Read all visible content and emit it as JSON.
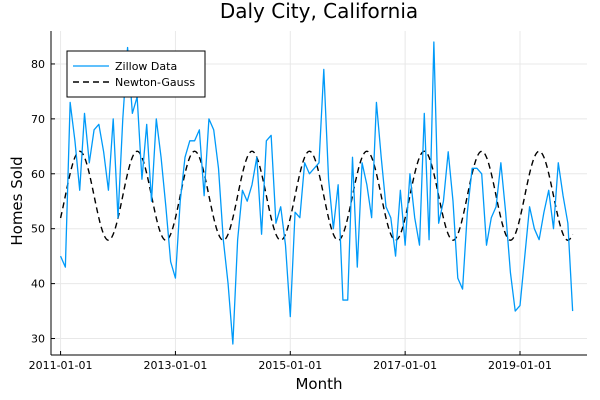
{
  "chart_data": {
    "type": "line",
    "title": "Daly City, California",
    "xlabel": "Month",
    "ylabel": "Homes Sold",
    "x_ticks": [
      "2011-01-01",
      "2013-01-01",
      "2015-01-01",
      "2017-01-01",
      "2019-01-01"
    ],
    "y_ticks": [
      30,
      40,
      50,
      60,
      70,
      80
    ],
    "xlim": [
      "2010-11-01",
      "2020-03-01"
    ],
    "ylim": [
      27,
      86
    ],
    "grid": true,
    "legend_position": "top-left",
    "series": [
      {
        "name": "Zillow Data",
        "color": "#009AF9",
        "style": "solid",
        "x": [
          "2011-01-01",
          "2011-02-01",
          "2011-03-01",
          "2011-04-01",
          "2011-05-01",
          "2011-06-01",
          "2011-07-01",
          "2011-08-01",
          "2011-09-01",
          "2011-10-01",
          "2011-11-01",
          "2011-12-01",
          "2012-01-01",
          "2012-02-01",
          "2012-03-01",
          "2012-04-01",
          "2012-05-01",
          "2012-06-01",
          "2012-07-01",
          "2012-08-01",
          "2012-09-01",
          "2012-10-01",
          "2012-11-01",
          "2012-12-01",
          "2013-01-01",
          "2013-02-01",
          "2013-03-01",
          "2013-04-01",
          "2013-05-01",
          "2013-06-01",
          "2013-07-01",
          "2013-08-01",
          "2013-09-01",
          "2013-10-01",
          "2013-11-01",
          "2013-12-01",
          "2014-01-01",
          "2014-02-01",
          "2014-03-01",
          "2014-04-01",
          "2014-05-01",
          "2014-06-01",
          "2014-07-01",
          "2014-08-01",
          "2014-09-01",
          "2014-10-01",
          "2014-11-01",
          "2014-12-01",
          "2015-01-01",
          "2015-02-01",
          "2015-03-01",
          "2015-04-01",
          "2015-05-01",
          "2015-06-01",
          "2015-07-01",
          "2015-08-01",
          "2015-09-01",
          "2015-10-01",
          "2015-11-01",
          "2015-12-01",
          "2016-01-01",
          "2016-02-01",
          "2016-03-01",
          "2016-04-01",
          "2016-05-01",
          "2016-06-01",
          "2016-07-01",
          "2016-08-01",
          "2016-09-01",
          "2016-10-01",
          "2016-11-01",
          "2016-12-01",
          "2017-01-01",
          "2017-02-01",
          "2017-03-01",
          "2017-04-01",
          "2017-05-01",
          "2017-06-01",
          "2017-07-01",
          "2017-08-01",
          "2017-09-01",
          "2017-10-01",
          "2017-11-01",
          "2017-12-01",
          "2018-01-01",
          "2018-02-01",
          "2018-03-01",
          "2018-04-01",
          "2018-05-01",
          "2018-06-01",
          "2018-07-01",
          "2018-08-01",
          "2018-09-01",
          "2018-10-01",
          "2018-11-01",
          "2018-12-01",
          "2019-01-01",
          "2019-02-01",
          "2019-03-01",
          "2019-04-01",
          "2019-05-01",
          "2019-06-01",
          "2019-07-01",
          "2019-08-01",
          "2019-09-01",
          "2019-10-01",
          "2019-11-01",
          "2019-12-01"
        ],
        "y": [
          45,
          43,
          73,
          66,
          57,
          71,
          62,
          68,
          69,
          64,
          57,
          70,
          52,
          70,
          83,
          71,
          74,
          59,
          69,
          55,
          70,
          63,
          54,
          44,
          41,
          55,
          63,
          66,
          66,
          68,
          56,
          70,
          68,
          61,
          48,
          40,
          29,
          48,
          57,
          55,
          58,
          63,
          49,
          66,
          67,
          51,
          54,
          47,
          34,
          53,
          52,
          62,
          60,
          61,
          62,
          79,
          59,
          50,
          58,
          37,
          37,
          63,
          43,
          62,
          58,
          52,
          73,
          63,
          54,
          52,
          45,
          57,
          47,
          60,
          52,
          47,
          71,
          48,
          84,
          51,
          55,
          64,
          55,
          41,
          39,
          53,
          61,
          61,
          60,
          47,
          52,
          54,
          62,
          53,
          42,
          35,
          36,
          45,
          54,
          50,
          48,
          53,
          57,
          50,
          62,
          56,
          51,
          35
        ]
      },
      {
        "name": "Newton-Gauss",
        "color": "#000000",
        "style": "dashed",
        "period_months": 12,
        "mean": 56,
        "amplitude": 8.1,
        "peak_month": 4
      }
    ]
  }
}
